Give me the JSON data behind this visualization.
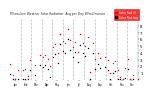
{
  "title": "Milwaukee Weather Solar Radiation",
  "subtitle": "Avg per Day W/m2/minute",
  "background_color": "#ffffff",
  "plot_bg_color": "#ffffff",
  "grid_color": "#bbbbbb",
  "ylim": [
    0,
    9
  ],
  "yticks": [
    1,
    2,
    3,
    4,
    5,
    6,
    7,
    8
  ],
  "series_red_color": "#ff0000",
  "series_black_color": "#000000",
  "legend_label_red": "Solar Rad Hi",
  "legend_label_black": "Solar Rad Avg",
  "month_days": [
    0,
    31,
    59,
    90,
    120,
    151,
    181,
    212,
    243,
    273,
    304,
    334,
    365
  ],
  "month_labels": [
    "Jan",
    "Feb",
    "Mar",
    "Apr",
    "May",
    "Jun",
    "Jul",
    "Aug",
    "Sep",
    "Oct",
    "Nov",
    "Dec"
  ],
  "seed": 7
}
